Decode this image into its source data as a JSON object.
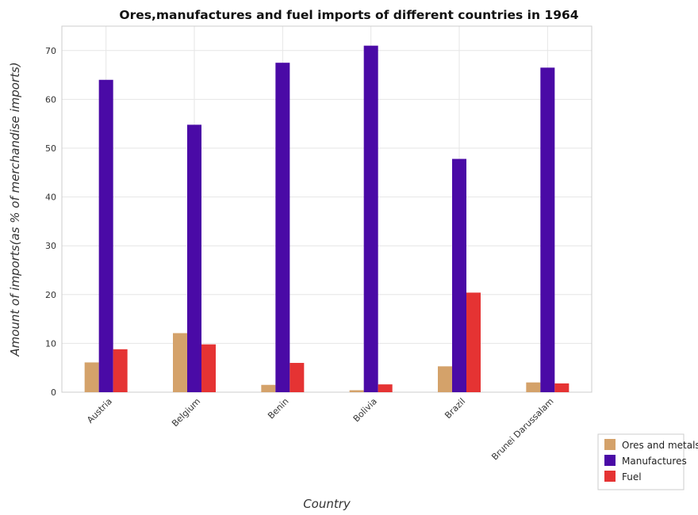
{
  "chart_data": {
    "type": "bar",
    "title": "Ores,manufactures and fuel imports of different countries in 1964",
    "xlabel": "Country",
    "ylabel": "Amount of imports(as % of merchandise imports)",
    "categories": [
      "Austria",
      "Belgium",
      "Benin",
      "Bolivia",
      "Brazil",
      "Brunei Darussalam"
    ],
    "ylim": [
      0,
      75
    ],
    "yticks": [
      0,
      10,
      20,
      30,
      40,
      50,
      60,
      70
    ],
    "grid": true,
    "legend_position": "bottom-right",
    "series": [
      {
        "name": "Ores and metals",
        "color": "#d4a26a",
        "values": [
          6.1,
          12.1,
          1.5,
          0.4,
          5.3,
          2.0
        ]
      },
      {
        "name": "Manufactures",
        "color": "#4a0aa6",
        "values": [
          64.0,
          54.8,
          67.5,
          71.0,
          47.8,
          66.5
        ]
      },
      {
        "name": "Fuel",
        "color": "#e53333",
        "values": [
          8.8,
          9.8,
          6.0,
          1.6,
          20.4,
          1.8
        ]
      }
    ]
  }
}
